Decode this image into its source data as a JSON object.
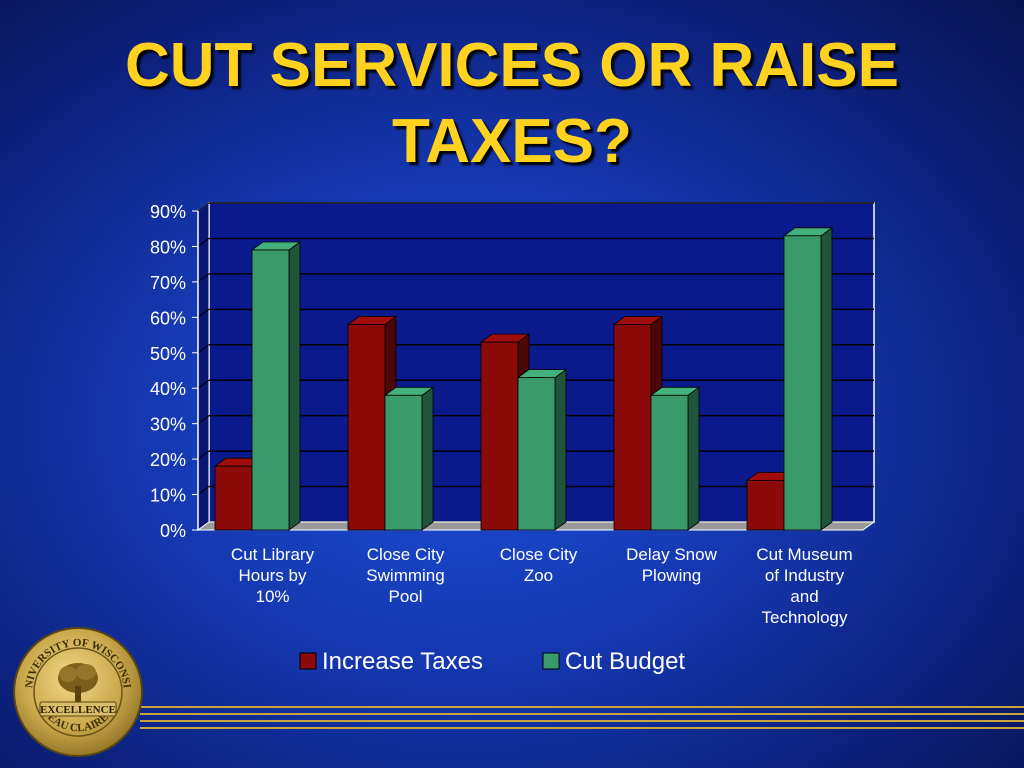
{
  "title": {
    "line1": "CUT SERVICES OR RAISE",
    "line2": "TAXES?"
  },
  "colors": {
    "increase": "#8b0a0a",
    "cut": "#3a9a6c",
    "title": "#ffd21f"
  },
  "chart_data": {
    "type": "bar",
    "categories": [
      [
        "Cut Library",
        "Hours by",
        "10%"
      ],
      [
        "Close City",
        "Swimming",
        "Pool"
      ],
      [
        "Close City",
        "Zoo"
      ],
      [
        "Delay Snow",
        "Plowing"
      ],
      [
        "Cut Museum",
        "of Industry",
        "and",
        "Technology"
      ]
    ],
    "series": [
      {
        "name": "Increase Taxes",
        "values": [
          18,
          58,
          53,
          58,
          14
        ]
      },
      {
        "name": "Cut Budget",
        "values": [
          79,
          38,
          43,
          38,
          83
        ]
      }
    ],
    "ylim": [
      0,
      90
    ],
    "yticks": [
      "0%",
      "10%",
      "20%",
      "30%",
      "40%",
      "50%",
      "60%",
      "70%",
      "80%",
      "90%"
    ],
    "grid": true,
    "legend": "bottom"
  },
  "seal": {
    "top_text": "UNIVERSITY OF WISCONSIN",
    "center_text": "EXCELLENCE",
    "bottom_text": "EAU CLAIRE"
  }
}
